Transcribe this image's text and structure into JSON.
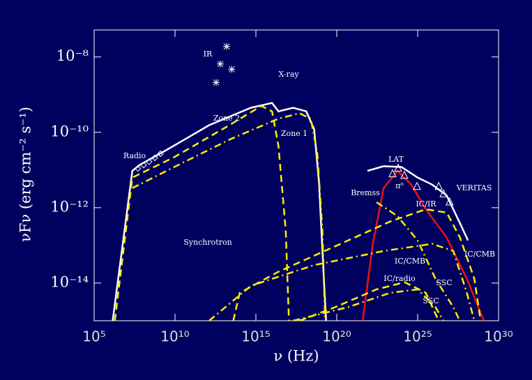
{
  "chart_data": {
    "type": "line",
    "x_label": "ν (Hz)",
    "y_label": "νFν (erg cm⁻² s⁻¹)",
    "log_x": true,
    "log_y": true,
    "xlim": [
      100000.0,
      1e+30
    ],
    "ylim": [
      1e-15,
      5.2e-08
    ],
    "xticks": [
      {
        "value": 100000.0,
        "label": "10⁵"
      },
      {
        "value": 10000000000.0,
        "label": "10¹⁰"
      },
      {
        "value": 1000000000000000.0,
        "label": "10¹⁵"
      },
      {
        "value": 1e+20,
        "label": "10²⁰"
      },
      {
        "value": 1e+25,
        "label": "10²⁵"
      },
      {
        "value": 1e+30,
        "label": "10³⁰"
      }
    ],
    "yticks": [
      {
        "value": 1e-08,
        "label": "10⁻⁸"
      },
      {
        "value": 1e-10,
        "label": "10⁻¹⁰"
      },
      {
        "value": 1e-12,
        "label": "10⁻¹²"
      },
      {
        "value": 1e-14,
        "label": "10⁻¹⁴"
      }
    ],
    "series": [
      {
        "color": "#ffffff",
        "dash": "solid",
        "x": [
          1400000.0,
          23000000.0,
          63000000.0,
          3400000000.0,
          1300000000000.0,
          500000000000000.0,
          1e+16,
          2.5e+16,
          2e+17,
          1.3e+18,
          4e+18,
          7.9e+18,
          1.6e+19,
          2.2e+19
        ],
        "values": [
          1e-15,
          9.5e-12,
          1.35e-11,
          3.5e-11,
          1.55e-10,
          4.5e-10,
          6e-10,
          3.6e-10,
          4.5e-10,
          3.6e-10,
          1.2e-10,
          5e-12,
          1.3e-14,
          1e-15
        ]
      },
      {
        "color": "#ffee00",
        "dash": "dashed",
        "x": [
          1900000.0,
          23000000.0,
          9000000000.0,
          10000000000000.0,
          2200000000000000.0,
          1e+16,
          2.5e+16,
          7e+16,
          1.1e+17
        ],
        "values": [
          1e-15,
          6.3e-12,
          2.2e-11,
          1.26e-10,
          5e-10,
          3.6e-10,
          4.3e-11,
          2.5e-13,
          1e-15
        ]
      },
      {
        "color": "#ffee00",
        "dash": "dashdot",
        "x": [
          23000000.0,
          9000000000.0,
          25000000000000.0,
          2.5e+16,
          5e+17,
          2.5e+18,
          6.3e+18,
          1.3e+19,
          1.9e+19
        ],
        "values": [
          3.3e-12,
          1.2e-11,
          6.5e-11,
          2.3e-10,
          3.2e-10,
          2.3e-10,
          2.8e-11,
          2.5e-13,
          1e-15
        ]
      },
      {
        "color": "#ffffff",
        "dash": "solid",
        "x": [
          7.9e+21,
          7.9e+22,
          1e+24,
          1e+25,
          7.9e+25,
          6.3e+26,
          4e+27,
          1.3e+28
        ],
        "values": [
          9.5e-12,
          1.26e-11,
          1.2e-11,
          6.3e-12,
          4.1e-12,
          2.1e-12,
          4e-13,
          1.35e-13
        ]
      },
      {
        "color": "#ee1111",
        "dash": "solid",
        "x": [
          4e+21,
          1.7e+22,
          7.9e+22,
          5.6e+23,
          4e+24,
          3.2e+25,
          5.9e+26,
          1.1e+28,
          7.9e+28,
          1.26e+29
        ],
        "values": [
          1e-15,
          1.1e-13,
          3.3e-12,
          9.5e-12,
          4.1e-12,
          9.1e-13,
          1.66e-13,
          1.3e-14,
          1.6e-15,
          1e-15
        ]
      },
      {
        "color": "#ffee00",
        "dash": "dashdot",
        "x": [
          2.9e+22,
          5.6e+23,
          1e+25,
          1.26e+26,
          1.6e+27,
          4e+27
        ],
        "values": [
          1.4e-12,
          6e-13,
          1.35e-13,
          1.3e-14,
          2.3e-15,
          1e-15
        ]
      },
      {
        "color": "#ffee00",
        "dash": "dashed",
        "x": [
          40000000000000.0,
          100000000000000.0,
          2.5e+16,
          5e+20,
          2e+23,
          3.2e+25,
          6.3e+26,
          4e+27,
          3.2e+28,
          7.9e+28
        ],
        "values": [
          1e-15,
          5.5e-15,
          2e-14,
          1.35e-13,
          4.3e-13,
          9.1e-13,
          7.4e-13,
          1.66e-13,
          1.3e-14,
          1e-15
        ]
      },
      {
        "color": "#ffee00",
        "dash": "dashdot",
        "x": [
          1300000000000.0,
          500000000000000.0,
          4e+18,
          7.9e+22,
          7.9e+25,
          1.6e+27,
          1.1e+28,
          3.2e+28
        ],
        "values": [
          1e-15,
          8.5e-15,
          3e-14,
          7.1e-14,
          1.1e-13,
          7.1e-14,
          5.5e-15,
          1e-15
        ]
      },
      {
        "color": "#ffee00",
        "dash": "dashed",
        "x": [
          5e+17,
          7.9e+19,
          2.9e+22,
          1.6e+24,
          3.2e+25,
          2e+26
        ],
        "values": [
          1e-15,
          2.3e-15,
          6.8e-15,
          1.05e-14,
          5.5e-15,
          1e-15
        ]
      },
      {
        "color": "#ffee00",
        "dash": "dashdot",
        "x": [
          2e+17,
          5e+20,
          2e+23,
          1e+25,
          1.26e+26,
          4e+26
        ],
        "values": [
          1e-15,
          2.3e-15,
          5.5e-15,
          6.8e-15,
          2.3e-15,
          1e-15
        ]
      },
      {
        "type": "scatter",
        "marker": "diamond",
        "color": "#ffffff",
        "x": [
          50000000.0,
          115000000.0,
          250000000.0,
          560000000.0,
          1260000000.0
        ],
        "values": [
          1.1e-11,
          1.35e-11,
          1.66e-11,
          2.1e-11,
          2.7e-11
        ]
      },
      {
        "type": "scatter",
        "marker": "star",
        "color": "#ffffff",
        "x": [
          3500000000000.0,
          6300000000000.0,
          15500000000000.0,
          32000000000000.0
        ],
        "values": [
          2.1e-09,
          6.5e-09,
          1.9e-08,
          4.7e-09
        ]
      },
      {
        "type": "scatter",
        "marker": "triangle",
        "color": "#ffffff",
        "x": [
          2.8e+23,
          6.2e+23,
          1.5e+24,
          9.1e+24
        ],
        "values": [
          7.8e-12,
          1.1e-11,
          7.1e-12,
          3.6e-12
        ]
      },
      {
        "type": "scatter",
        "marker": "triangle",
        "color": "#ffffff",
        "x": [
          2e+26,
          4e+26,
          9.5e+26
        ],
        "values": [
          3.6e-12,
          2.3e-12,
          1.4e-12
        ]
      }
    ],
    "annotations": [
      "IR",
      "X-ray",
      "Zone 2",
      "Zone 1",
      "Radio",
      "Synchrotron",
      "LAT",
      "VERITAS",
      "Bremss",
      "IC/IR",
      "π⁰",
      "IC/CMB",
      "IC/CMB",
      "IC/radio",
      "SSC",
      "SSC"
    ]
  }
}
